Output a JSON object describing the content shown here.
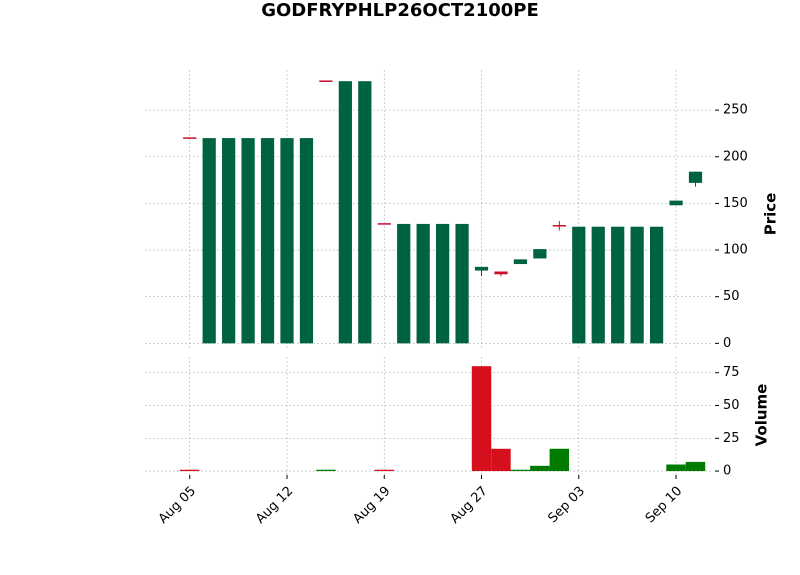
{
  "chart_data": {
    "type": "candlestick",
    "title": "GODFRYPHLP26OCT2100PE",
    "categories": [
      "Aug 05",
      null,
      null,
      null,
      null,
      "Aug 12",
      null,
      null,
      null,
      null,
      "Aug 19",
      null,
      null,
      null,
      null,
      "Aug 27",
      null,
      null,
      null,
      null,
      "Sep 03",
      null,
      null,
      null,
      null,
      "Sep 10",
      null
    ],
    "open": [
      220,
      0,
      0,
      0,
      0,
      0,
      0,
      281,
      0,
      0,
      128,
      0,
      0,
      0,
      0,
      78,
      77,
      85,
      91,
      126,
      0,
      0,
      0,
      0,
      0,
      148,
      172
    ],
    "high": [
      220,
      220,
      220,
      220,
      220,
      220,
      220,
      281,
      281,
      281,
      128,
      128,
      128,
      128,
      128,
      82,
      77,
      90,
      101,
      131,
      125,
      125,
      125,
      125,
      125,
      153,
      184
    ],
    "low": [
      220,
      0,
      0,
      0,
      0,
      0,
      0,
      281,
      0,
      0,
      128,
      0,
      0,
      0,
      0,
      72,
      72,
      85,
      91,
      121,
      0,
      0,
      0,
      0,
      0,
      148,
      168
    ],
    "close": [
      220,
      220,
      220,
      220,
      220,
      220,
      220,
      281,
      281,
      281,
      128,
      128,
      128,
      128,
      128,
      82,
      74,
      90,
      101,
      125,
      125,
      125,
      125,
      125,
      125,
      153,
      184
    ],
    "colors": [
      "#c8102e",
      "#006340",
      "#006340",
      "#006340",
      "#006340",
      "#006340",
      "#006340",
      "#c8102e",
      "#006340",
      "#006340",
      "#c8102e",
      "#006340",
      "#006340",
      "#006340",
      "#006340",
      "#006340",
      "#c8102e",
      "#006340",
      "#006340",
      "#c8102e",
      "#006340",
      "#006340",
      "#006340",
      "#006340",
      "#006340",
      "#006340",
      "#006340"
    ],
    "ylabel": "Price",
    "ylim": [
      -5,
      293
    ],
    "yticks": [
      0,
      50,
      100,
      150,
      200,
      250
    ],
    "grid": true,
    "volume": {
      "ylabel": "Volume",
      "ylim": [
        -3,
        87
      ],
      "yticks": [
        0,
        25,
        50,
        75
      ],
      "values": [
        1,
        0,
        0,
        0,
        0,
        0,
        0,
        1,
        0,
        0,
        1,
        0,
        0,
        0,
        0,
        80,
        17,
        1,
        4,
        17,
        0,
        0,
        0,
        0,
        0,
        5,
        7
      ],
      "colors": [
        "#d50f1c",
        "#007a00",
        "#007a00",
        "#007a00",
        "#007a00",
        "#007a00",
        "#007a00",
        "#007a00",
        "#007a00",
        "#007a00",
        "#d50f1c",
        "#007a00",
        "#007a00",
        "#007a00",
        "#007a00",
        "#d50f1c",
        "#d50f1c",
        "#007a00",
        "#007a00",
        "#007a00",
        "#007a00",
        "#007a00",
        "#007a00",
        "#007a00",
        "#007a00",
        "#007a00",
        "#007a00"
      ]
    }
  }
}
